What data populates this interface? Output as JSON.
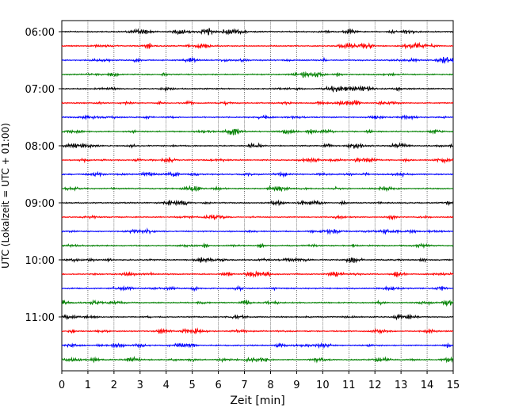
{
  "chart_data": {
    "type": "line",
    "title": "",
    "xlabel": "Zeit  [min]",
    "ylabel": "UTC (Lokalzeit = UTC + 01:00)",
    "xlim": [
      0,
      15
    ],
    "x_ticks": [
      0,
      1,
      2,
      3,
      4,
      5,
      6,
      7,
      8,
      9,
      10,
      11,
      12,
      13,
      14,
      15
    ],
    "x_tick_labels": [
      "0",
      "1",
      "2",
      "3",
      "4",
      "5",
      "6",
      "7",
      "8",
      "9",
      "10",
      "11",
      "12",
      "13",
      "14",
      "15"
    ],
    "y_tick_labels": [
      "06:00",
      "07:00",
      "08:00",
      "09:00",
      "10:00",
      "11:00"
    ],
    "grid": "vertical dotted at each minute",
    "trace_count": 24,
    "traces_per_hour": 4,
    "minutes_per_trace": 15,
    "first_trace_start": "06:00",
    "color_cycle": [
      "#000000",
      "#ff0000",
      "#0000ff",
      "#008000"
    ]
  }
}
